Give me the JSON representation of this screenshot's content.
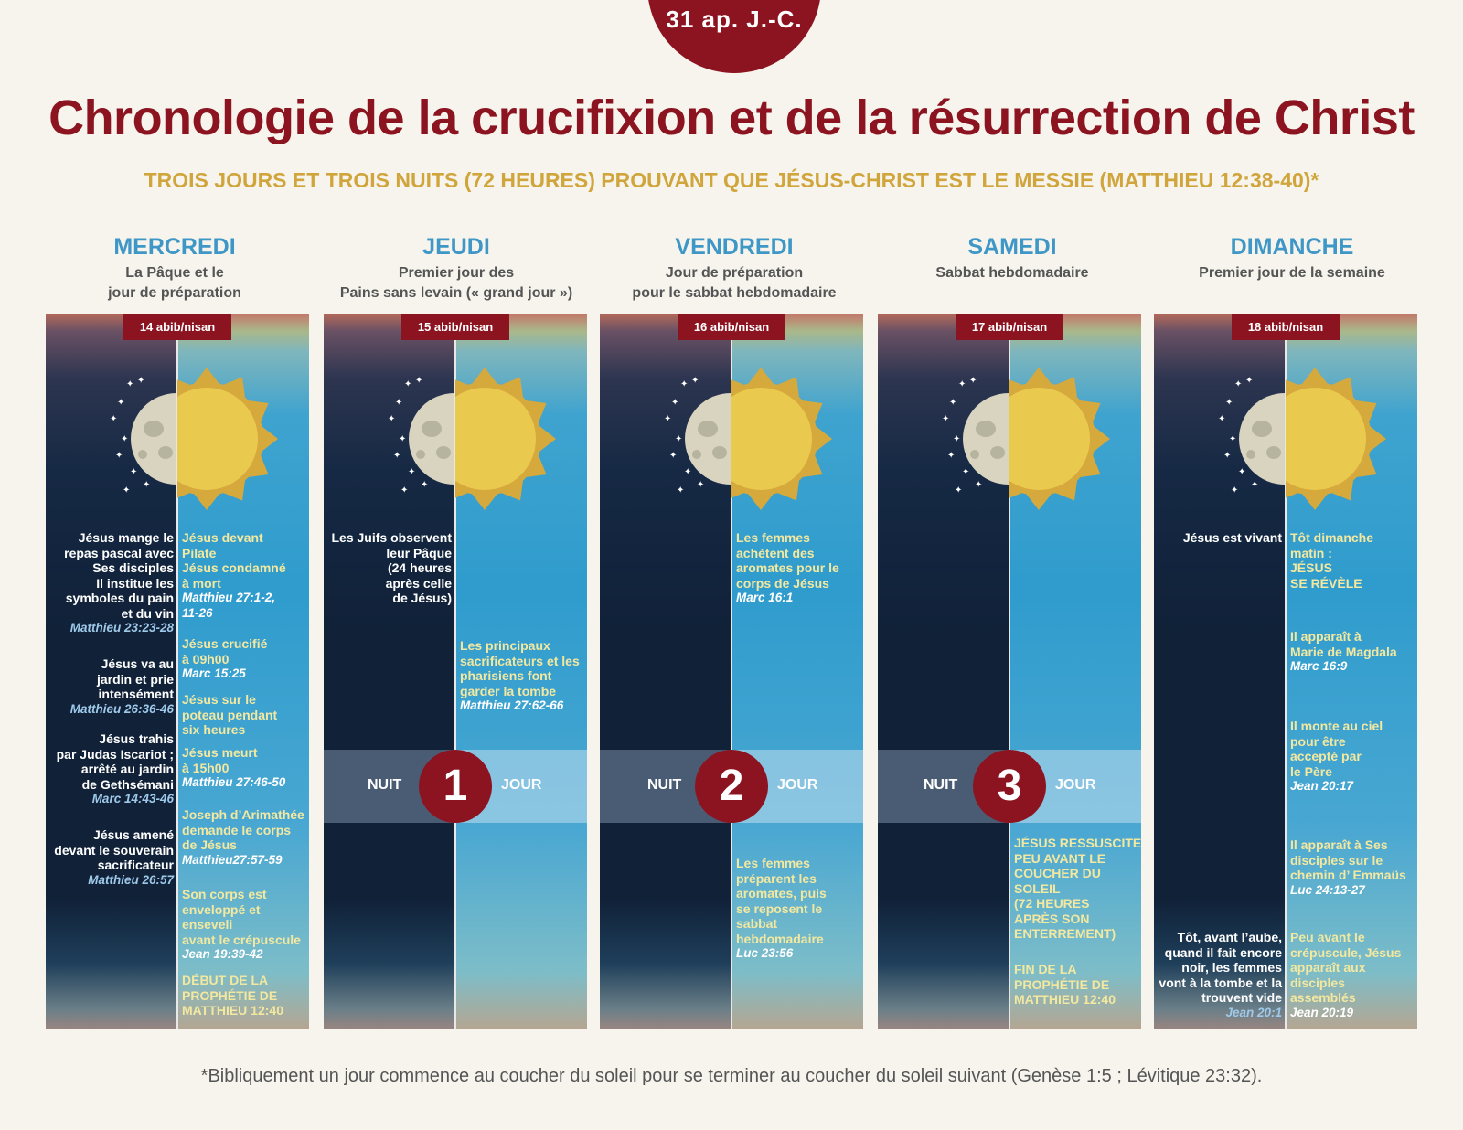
{
  "badge": "31 ap. J.-C.",
  "title": "Chronologie de la crucifixion et de la résurrection de Christ",
  "subtitle": "TROIS JOURS ET TROIS NUITS (72 HEURES) PROUVANT QUE JÉSUS-CHRIST EST LE MESSIE (MATTHIEU 12:38-40)*",
  "labels": {
    "night": "NUIT",
    "day": "JOUR"
  },
  "days": [
    {
      "name": "MERCREDI",
      "desc": "La Pâque et le\njour de préparation",
      "date": "14 abib/nisan"
    },
    {
      "name": "JEUDI",
      "desc": "Premier jour des\nPains sans levain (« grand jour »)",
      "date": "15 abib/nisan"
    },
    {
      "name": "VENDREDI",
      "desc": "Jour de préparation\npour le sabbat hebdomadaire",
      "date": "16 abib/nisan"
    },
    {
      "name": "SAMEDI",
      "desc": "Sabbat hebdomadaire",
      "date": "17 abib/nisan"
    },
    {
      "name": "DIMANCHE",
      "desc": "Premier jour de la semaine",
      "date": "18 abib/nisan"
    }
  ],
  "bands": [
    "1",
    "2",
    "3"
  ],
  "events": {
    "wed_night": [
      {
        "lines": [
          "Jésus mange le",
          "repas pascal avec",
          "Ses disciples",
          "Il institue les",
          "symboles du pain",
          "et du vin"
        ],
        "ref": "Matthieu 23:23-28"
      },
      {
        "lines": [
          "Jésus va au",
          "jardin et prie",
          "intensément"
        ],
        "ref": "Matthieu 26:36-46"
      },
      {
        "lines": [
          "Jésus trahis",
          "par Judas Iscariot ;",
          "arrêté au jardin",
          "de Gethsémani"
        ],
        "ref": "Marc 14:43-46"
      },
      {
        "lines": [
          "Jésus amené",
          "devant le souverain",
          "sacrificateur"
        ],
        "ref": "Matthieu 26:57"
      }
    ],
    "wed_day": [
      {
        "lines": [
          "Jésus devant",
          "Pilate",
          "Jésus condamné",
          "à mort"
        ],
        "ref": "Matthieu 27:1-2,\n11-26"
      },
      {
        "lines": [
          "Jésus crucifié",
          "à 09h00"
        ],
        "ref": "Marc 15:25"
      },
      {
        "lines": [
          "Jésus sur le",
          "poteau pendant",
          "six heures"
        ],
        "ref": ""
      },
      {
        "lines": [
          "Jésus meurt",
          "à 15h00"
        ],
        "ref": "Matthieu 27:46-50"
      },
      {
        "lines": [
          "Joseph d’Arimathée",
          "demande le corps",
          "de Jésus"
        ],
        "ref": "Matthieu27:57-59"
      },
      {
        "lines": [
          "Son corps est",
          "enveloppé et",
          "enseveli",
          "avant le crépuscule"
        ],
        "ref": "Jean 19:39-42"
      },
      {
        "lines": [
          "DÉBUT DE LA",
          "PROPHÉTIE DE",
          "MATTHIEU 12:40"
        ],
        "ref": ""
      }
    ],
    "thu_night": [
      {
        "lines": [
          "Les Juifs observent",
          "leur Pâque",
          "(24 heures",
          "après celle",
          "de Jésus)"
        ],
        "ref": ""
      }
    ],
    "thu_day": [
      {
        "lines": [
          "Les principaux",
          "sacrificateurs et les",
          "pharisiens font",
          "garder la tombe"
        ],
        "ref": "Matthieu 27:62-66"
      }
    ],
    "fri_day": [
      {
        "lines": [
          "Les femmes",
          "achètent des",
          "aromates pour le",
          "corps de Jésus"
        ],
        "ref": "Marc 16:1"
      },
      {
        "lines": [
          "Les femmes",
          "préparent les",
          "aromates, puis",
          "se reposent le",
          "sabbat",
          "hebdomadaire"
        ],
        "ref": "Luc 23:56"
      }
    ],
    "sat_day": [
      {
        "lines": [
          "JÉSUS RESSUSCITE",
          "PEU AVANT LE",
          "COUCHER DU",
          "SOLEIL",
          "(72 HEURES",
          "APRÈS SON",
          "ENTERREMENT)"
        ],
        "ref": ""
      },
      {
        "lines": [
          "FIN DE LA",
          "PROPHÉTIE DE",
          "MATTHIEU 12:40"
        ],
        "ref": ""
      }
    ],
    "sun_night": [
      {
        "lines": [
          "Jésus est vivant"
        ],
        "ref": ""
      },
      {
        "lines": [
          "Tôt, avant l’aube,",
          "quand il fait encore",
          "noir, les femmes",
          "vont à la tombe et la",
          "trouvent vide"
        ],
        "ref": "Jean 20:1"
      }
    ],
    "sun_day": [
      {
        "lines": [
          "Tôt dimanche",
          "matin :",
          "JÉSUS",
          "SE RÉVÈLE"
        ],
        "ref": ""
      },
      {
        "lines": [
          "Il apparaît à",
          "Marie de Magdala"
        ],
        "ref": "Marc 16:9"
      },
      {
        "lines": [
          "Il monte au ciel",
          "pour être",
          "accepté par",
          "le Père"
        ],
        "ref": "Jean 20:17"
      },
      {
        "lines": [
          "Il apparaît à Ses",
          "disciples sur le",
          "chemin d’ Emmaüs"
        ],
        "ref": "Luc 24:13-27"
      },
      {
        "lines": [
          "Peu avant le",
          "crépuscule, Jésus",
          "apparaît aux",
          "disciples",
          "assemblés"
        ],
        "ref": "Jean 20:19"
      }
    ]
  },
  "footnote": "*Bibliquement un jour commence au coucher du soleil pour se terminer au coucher du soleil suivant (Genèse 1:5 ; Lévitique 23:32).",
  "colors": {
    "accent": "#8c1420",
    "gold": "#d0a53c",
    "blue": "#3e97c6"
  }
}
